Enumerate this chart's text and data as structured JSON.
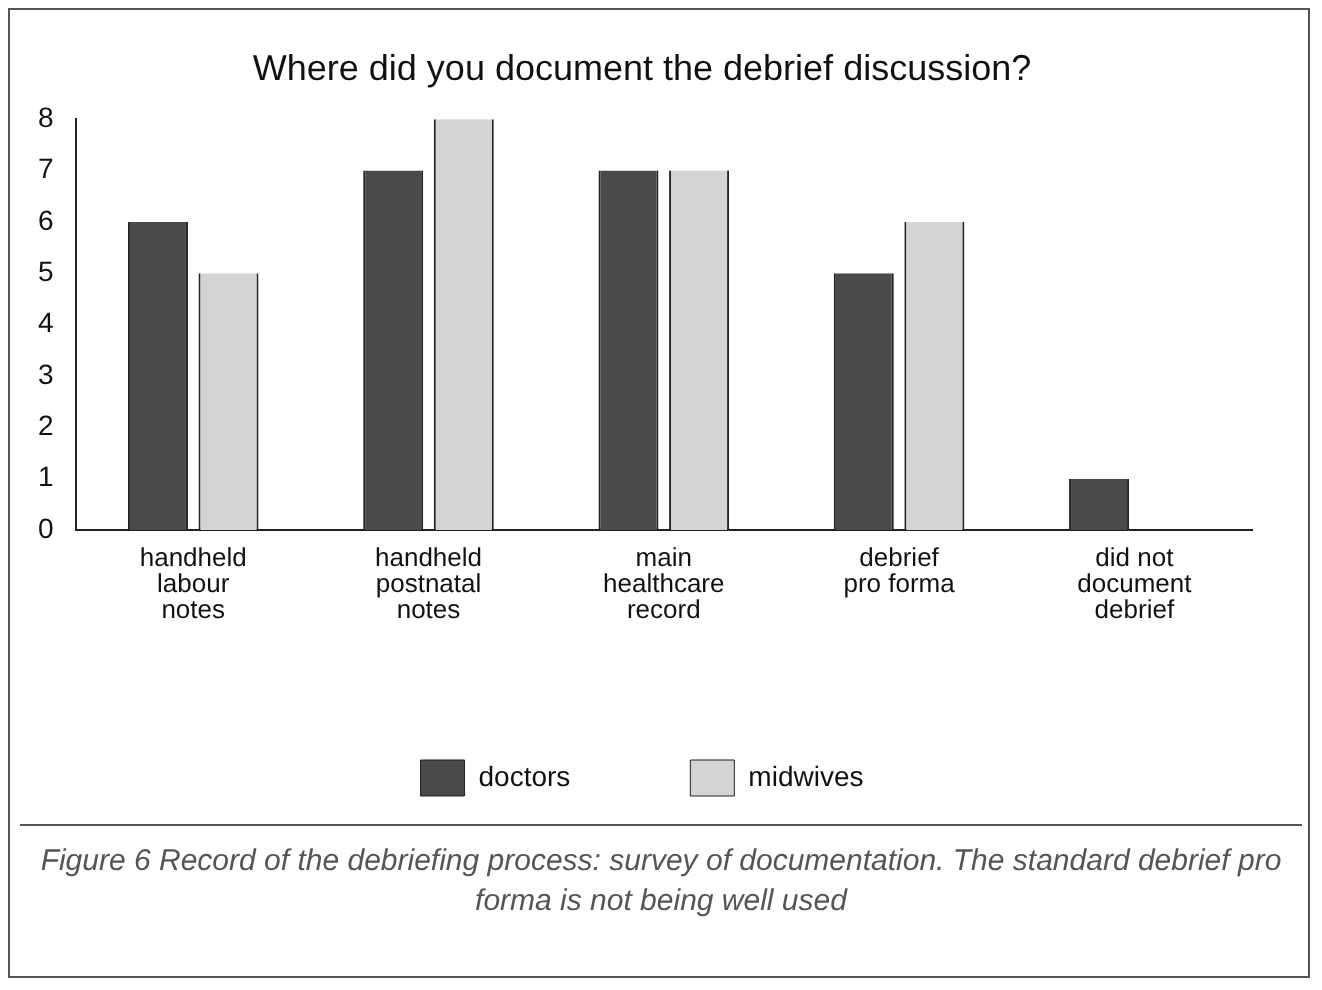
{
  "chart_data": {
    "type": "bar",
    "title": "Where did you document the debrief discussion?",
    "categories": [
      "handheld\nlabour\nnotes",
      "handheld\npostnatal\nnotes",
      "main\nhealthcare\nrecord",
      "debrief\npro forma",
      "did not\ndocument\ndebrief"
    ],
    "series": [
      {
        "name": "doctors",
        "color": "#4a4a4a",
        "values": [
          6,
          7,
          7,
          5,
          1
        ]
      },
      {
        "name": "midwives",
        "color": "#d4d4d4",
        "values": [
          5,
          8,
          7,
          6,
          0
        ]
      }
    ],
    "ylim": [
      0,
      8
    ],
    "yticks": [
      0,
      1,
      2,
      3,
      4,
      5,
      6,
      7,
      8
    ],
    "grid": false,
    "legend": "bottom",
    "annotations": [
      "Figure 6 Record of the debriefing process: survey of documentation. The standard debrief pro forma is not being well used"
    ]
  }
}
